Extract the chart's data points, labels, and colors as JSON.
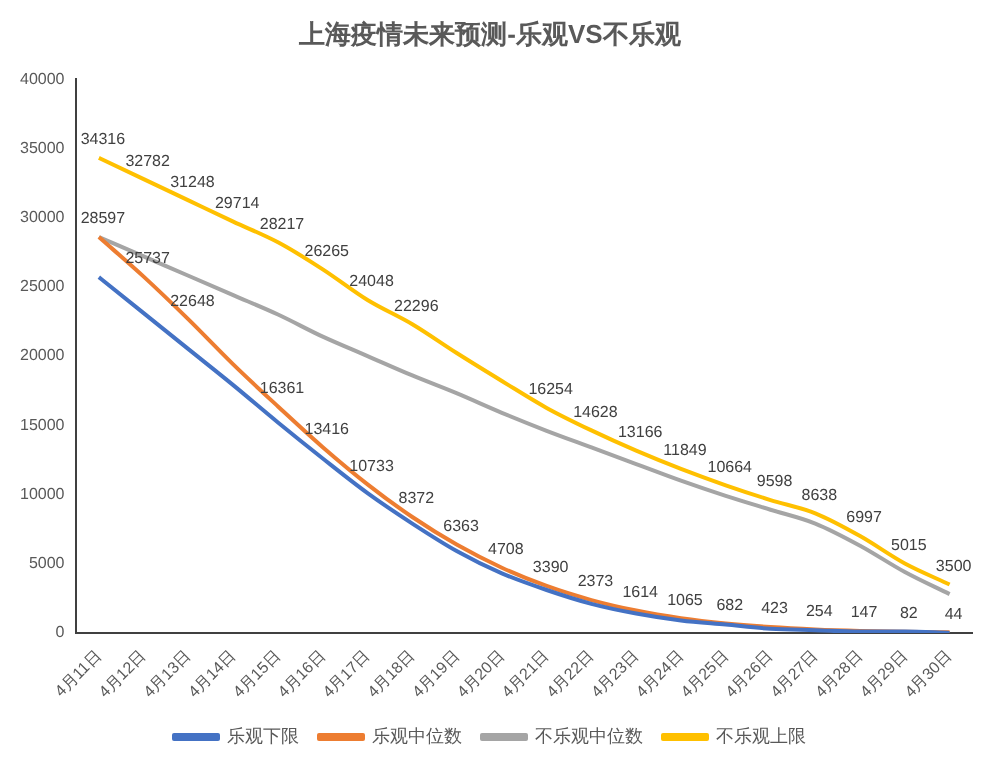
{
  "chart_data": {
    "type": "line",
    "title": "上海疫情未来预测-乐观VS不乐观",
    "categories": [
      "4月11日",
      "4月12日",
      "4月13日",
      "4月14日",
      "4月15日",
      "4月16日",
      "4月17日",
      "4月18日",
      "4月19日",
      "4月20日",
      "4月21日",
      "4月22日",
      "4月23日",
      "4月24日",
      "4月25日",
      "4月26日",
      "4月27日",
      "4月28日",
      "4月29日",
      "4月30日"
    ],
    "series": [
      {
        "name": "乐观下限",
        "color": "#4472c4",
        "values": [
          25700,
          23100,
          20500,
          17900,
          15200,
          12600,
          10100,
          7900,
          5900,
          4300,
          3100,
          2100,
          1400,
          900,
          600,
          300,
          200,
          100,
          100,
          0
        ]
      },
      {
        "name": "乐观中位数",
        "color": "#ed7d31",
        "values": [
          28597,
          25737,
          22648,
          19400,
          16361,
          13416,
          10733,
          8372,
          6363,
          4708,
          3390,
          2373,
          1614,
          1065,
          682,
          423,
          254,
          147,
          82,
          44
        ],
        "value_labels": [
          "28597",
          "25737",
          "22648",
          null,
          "16361",
          "13416",
          "10733",
          "8372",
          "6363",
          "4708",
          "3390",
          "2373",
          "1614",
          "1065",
          "682",
          "423",
          "254",
          "147",
          "82",
          "44"
        ]
      },
      {
        "name": "不乐观中位数",
        "color": "#a5a5a5",
        "values": [
          28600,
          27200,
          25800,
          24400,
          23000,
          21400,
          20000,
          18600,
          17300,
          15900,
          14600,
          13400,
          12200,
          11000,
          9900,
          8900,
          7900,
          6300,
          4400,
          2800
        ]
      },
      {
        "name": "不乐观上限",
        "color": "#ffc000",
        "values": [
          34316,
          32782,
          31248,
          29714,
          28217,
          26265,
          24048,
          22296,
          20200,
          18200,
          16254,
          14628,
          13166,
          11849,
          10664,
          9598,
          8638,
          6997,
          5015,
          3500
        ],
        "value_labels": [
          "34316",
          "32782",
          "31248",
          "29714",
          "28217",
          "26265",
          "24048",
          "22296",
          null,
          null,
          "16254",
          "14628",
          "13166",
          "11849",
          "10664",
          "9598",
          "8638",
          "6997",
          "5015",
          "3500"
        ]
      }
    ],
    "ylim": [
      0,
      40000
    ],
    "yticks": [
      0,
      5000,
      10000,
      15000,
      20000,
      25000,
      30000,
      35000,
      40000
    ],
    "grid": false,
    "legend": "bottom",
    "marker": "none",
    "line_style": "solid"
  }
}
